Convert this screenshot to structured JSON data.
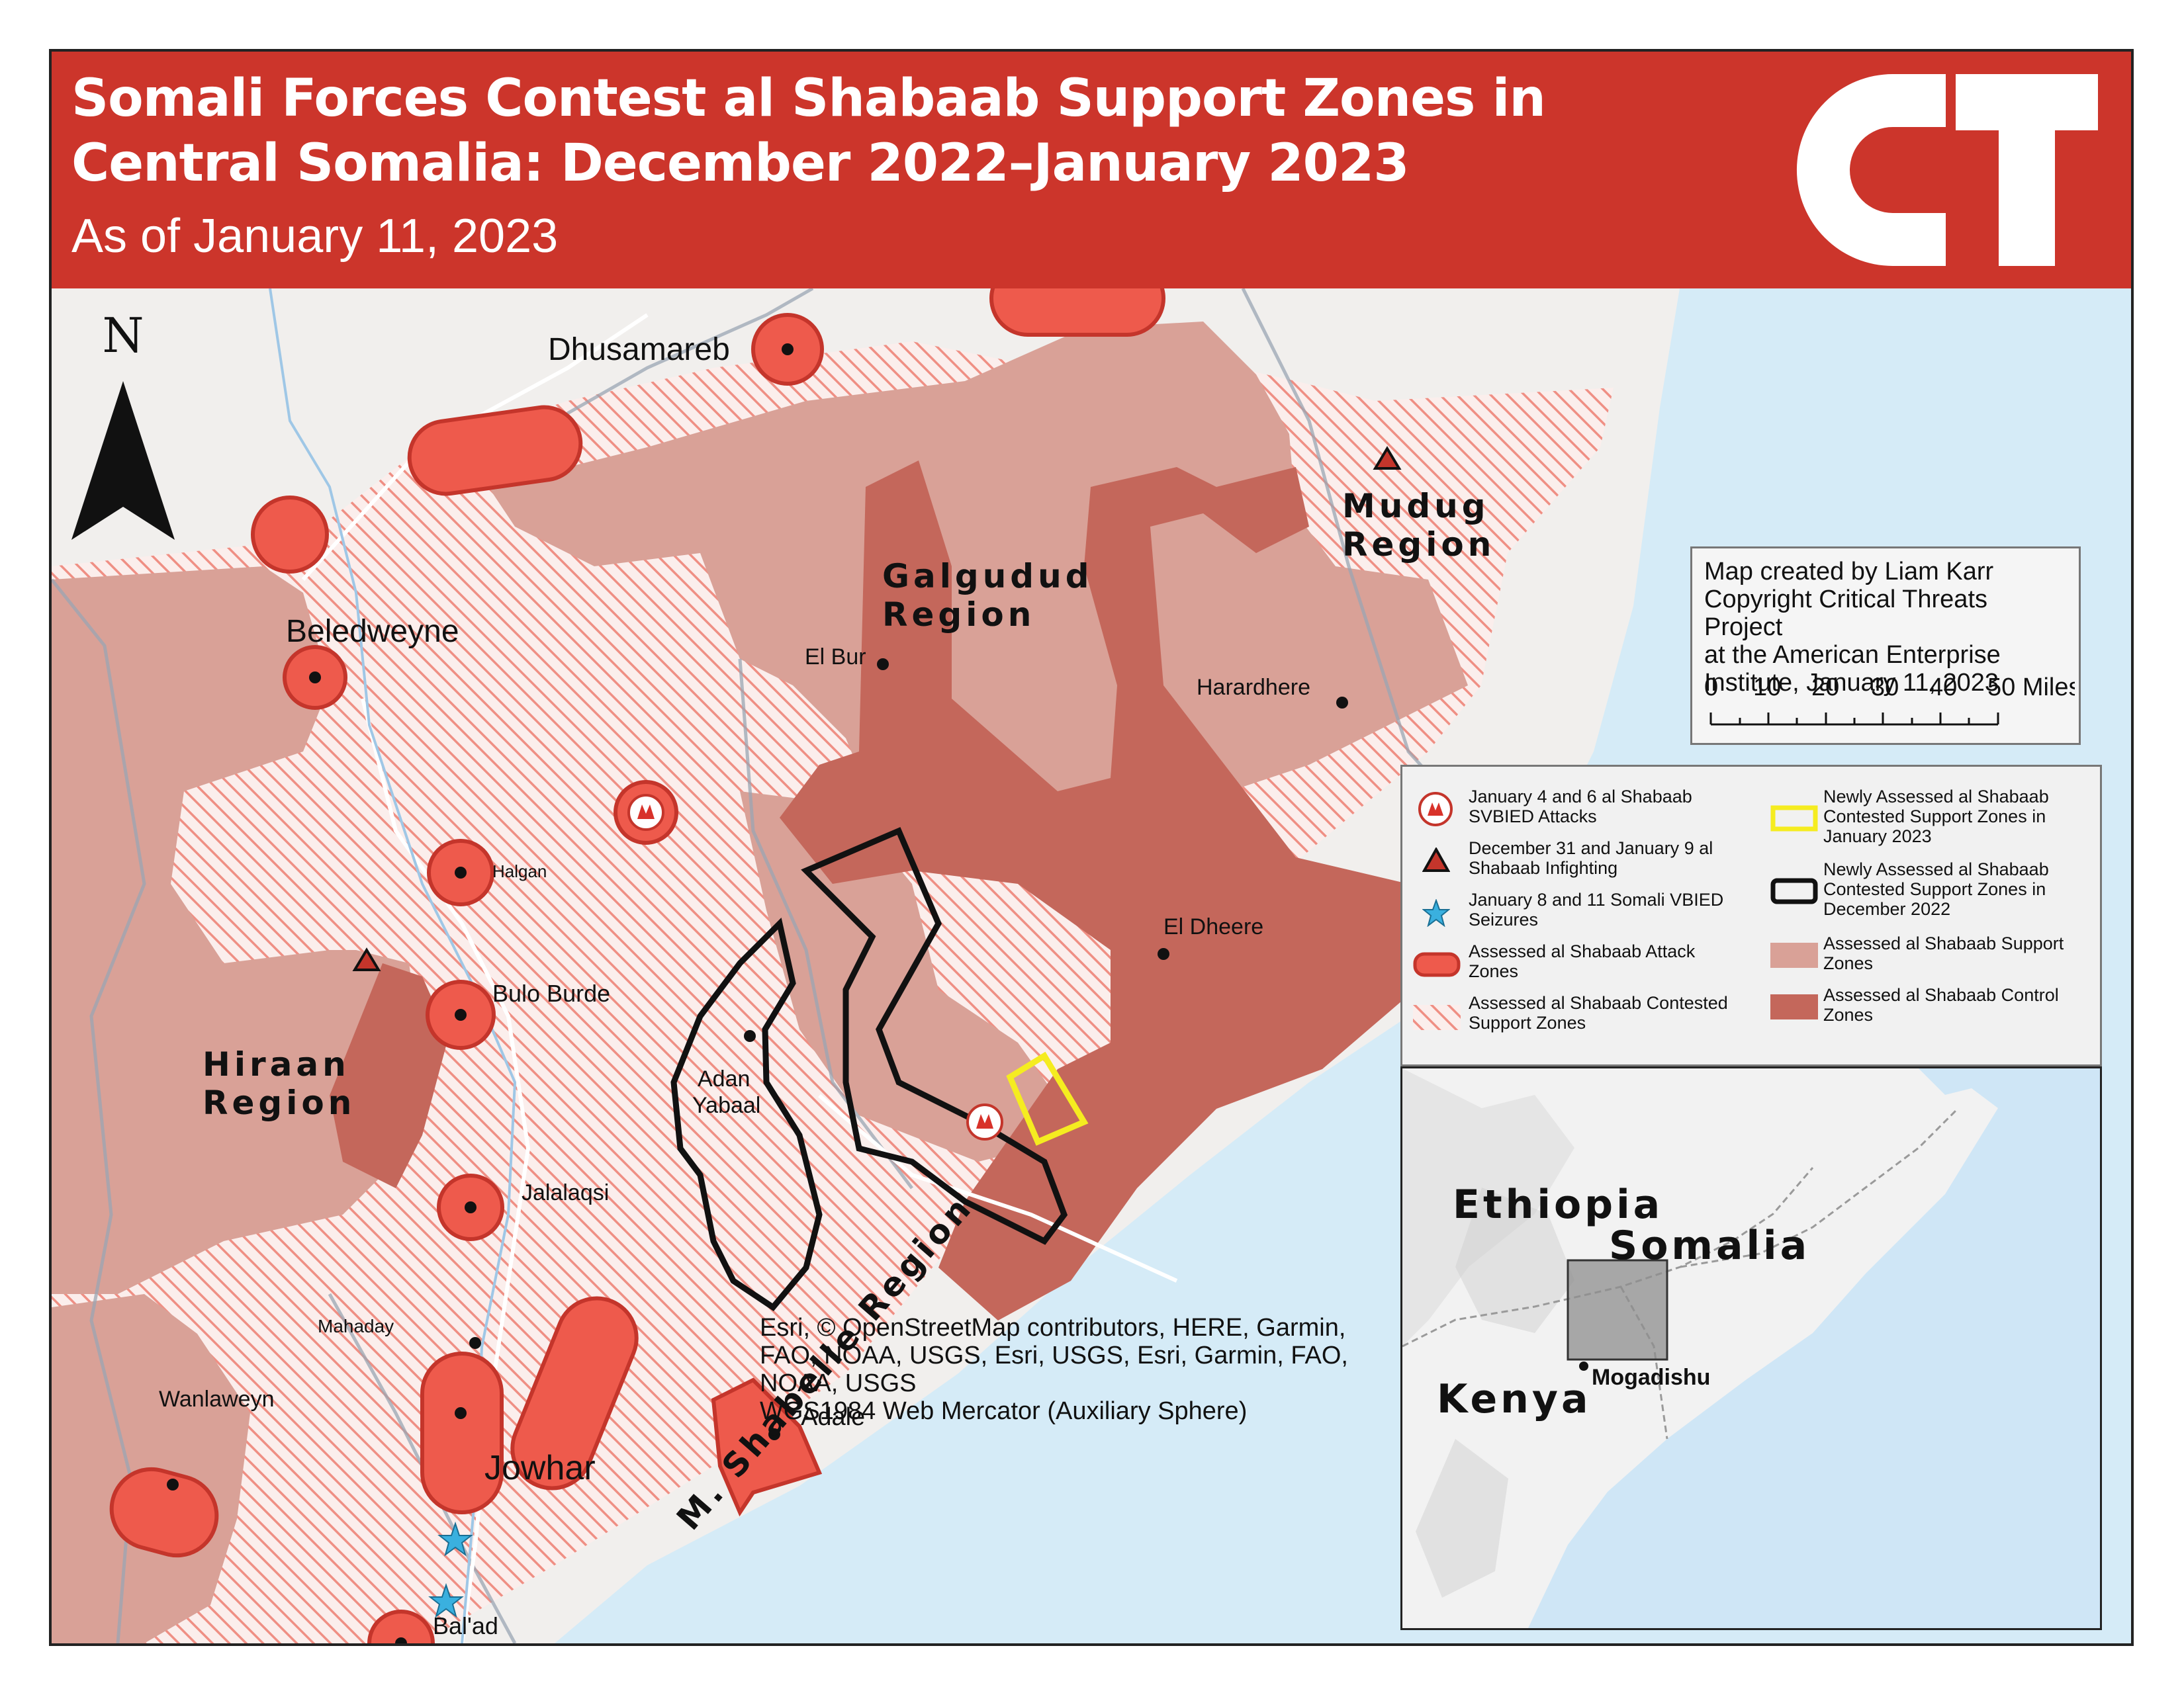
{
  "header": {
    "title_line1": "Somali Forces Contest al Shabaab Support Zones in",
    "title_line2": "Central Somalia: December 2022–January 2023",
    "subtitle": "As of January 11, 2023",
    "logo_text": "CT",
    "background": "#cc352b"
  },
  "map": {
    "north_label": "N",
    "regions": [
      "Galgudud",
      "Region",
      "Mudug",
      "Region",
      "Hiraan",
      "Region",
      "M. Shabelle Region"
    ],
    "towns": {
      "dhusamareb": "Dhusamareb",
      "beledweyne": "Beledweyne",
      "el_bur": "El Bur",
      "harardhere": "Harardhere",
      "halgan": "Halgan",
      "bulo_burde": "Bulo Burde",
      "adan_yabaal_1": "Adan",
      "adan_yabaal_2": "Yabaal",
      "el_dheere": "El Dheere",
      "jalalaqsi": "Jalalaqsi",
      "mahaday": "Mahaday",
      "wanlaweyn": "Wanlaweyn",
      "jowhar": "Jowhar",
      "adale": "Adale",
      "balad": "Bal'ad"
    },
    "colors": {
      "land": "#f1efed",
      "water": "#d5ebf7",
      "support": "#d9a197",
      "control": "#c4675b",
      "attack": "#ee5a4c",
      "attack_stroke": "#c4352b",
      "hatch": "#ef8f84",
      "new_jan": "#f5ec20",
      "new_dec": "#111111"
    }
  },
  "credits": {
    "line1": "Map created by Liam Karr",
    "line2": "Copyright Critical Threats Project",
    "line3": "at the American Enterprise",
    "line4": "Institute, January 11, 2023",
    "scale": [
      "0",
      "10",
      "20",
      "30",
      "40",
      "50 Miles"
    ]
  },
  "legend": {
    "items": [
      {
        "icon": "svbied-icon",
        "label1": "January 4 and 6 al Shabaab",
        "label2": "SVBIED Attacks"
      },
      {
        "icon": "infighting-triangle-icon",
        "label1": "December 31 and January 9 al",
        "label2": "Shabaab Infighting"
      },
      {
        "icon": "star-icon",
        "label1": "January 8 and 11 Somali VBIED",
        "label2": "Seizures"
      },
      {
        "icon": "attack-zone-swatch",
        "label1": "Assessed al Shabaab Attack",
        "label2": "Zones"
      },
      {
        "icon": "contested-hatch-swatch",
        "label1": "Assessed al Shabaab Contested",
        "label2": "Support Zones"
      },
      {
        "icon": "yellow-outline-swatch",
        "label1": "Newly Assessed al Shabaab",
        "label2": "Contested Support Zones in",
        "label3": "January 2023"
      },
      {
        "icon": "black-outline-swatch",
        "label1": "Newly Assessed al Shabaab",
        "label2": "Contested Support Zones in",
        "label3": "December 2022"
      },
      {
        "icon": "support-swatch",
        "label1": "Assessed al Shabaab Support",
        "label2": "Zones"
      },
      {
        "icon": "control-swatch",
        "label1": "Assessed al Shabaab Control",
        "label2": "Zones"
      }
    ]
  },
  "inset": {
    "ethiopia": "Ethiopia",
    "somalia": "Somalia",
    "kenya": "Kenya",
    "mogadishu": "Mogadishu"
  },
  "attribution": {
    "line1": "Esri, © OpenStreetMap contributors, HERE, Garmin,",
    "line2": "FAO, NOAA, USGS, Esri, USGS, Esri, Garmin, FAO,",
    "line3": "NOAA, USGS",
    "line4": "WGS1984 Web Mercator (Auxiliary Sphere)"
  }
}
